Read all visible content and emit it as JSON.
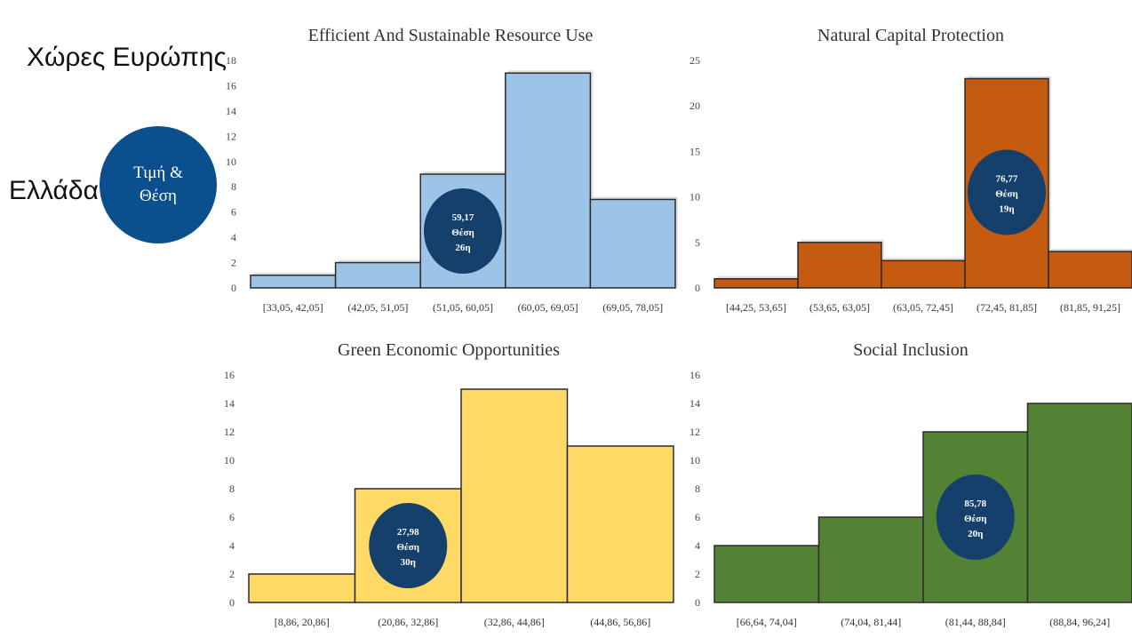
{
  "labels": {
    "europe": "Χώρες Ευρώπης",
    "greece": "Ελλάδα",
    "legend_line1": "Τιμή &",
    "legend_line2": "Θέση"
  },
  "colors": {
    "legend_circle": "#0b4f8c",
    "greece_marker": "#15406b"
  },
  "chart_data": [
    {
      "type": "bar",
      "title": "Efficient And Sustainable Resource Use",
      "categories": [
        "[33,05, 42,05]",
        "(42,05, 51,05]",
        "(51,05, 60,05]",
        "(60,05, 69,05]",
        "(69,05, 78,05]"
      ],
      "values": [
        1,
        2,
        9,
        17,
        7
      ],
      "ylim": [
        0,
        18
      ],
      "yticks": [
        0,
        2,
        4,
        6,
        8,
        10,
        12,
        14,
        16,
        18
      ],
      "color": "#9dc3e6",
      "greece": {
        "category_index": 2,
        "value": "59,17",
        "rank_label": "Θέση",
        "rank": "26η",
        "marker_y": 4.5
      }
    },
    {
      "type": "bar",
      "title": "Natural Capital Protection",
      "categories": [
        "[44,25, 53,65]",
        "(53,65, 63,05]",
        "(63,05, 72,45]",
        "(72,45, 81,85]",
        "(81,85, 91,25]"
      ],
      "values": [
        1,
        5,
        3,
        23,
        4
      ],
      "ylim": [
        0,
        25
      ],
      "yticks": [
        0,
        5,
        10,
        15,
        20,
        25
      ],
      "color": "#c55a11",
      "greece": {
        "category_index": 3,
        "value": "76,77",
        "rank_label": "Θέση",
        "rank": "19η",
        "marker_y": 10.5
      }
    },
    {
      "type": "bar",
      "title": "Green Economic Opportunities",
      "categories": [
        "[8,86, 20,86]",
        "(20,86, 32,86]",
        "(32,86, 44,86]",
        "(44,86, 56,86]"
      ],
      "values": [
        2,
        8,
        15,
        11
      ],
      "ylim": [
        0,
        16
      ],
      "yticks": [
        0,
        2,
        4,
        6,
        8,
        10,
        12,
        14,
        16
      ],
      "color": "#ffd966",
      "greece": {
        "category_index": 1,
        "value": "27,98",
        "rank_label": "Θέση",
        "rank": "30η",
        "marker_y": 4
      }
    },
    {
      "type": "bar",
      "title": "Social Inclusion",
      "categories": [
        "[66,64, 74,04]",
        "(74,04, 81,44]",
        "(81,44, 88,84]",
        "(88,84, 96,24]"
      ],
      "values": [
        4,
        6,
        12,
        14
      ],
      "ylim": [
        0,
        16
      ],
      "yticks": [
        0,
        2,
        4,
        6,
        8,
        10,
        12,
        14,
        16
      ],
      "color": "#548235",
      "greece": {
        "category_index": 2,
        "value": "85,78",
        "rank_label": "Θέση",
        "rank": "20η",
        "marker_y": 6
      }
    }
  ]
}
